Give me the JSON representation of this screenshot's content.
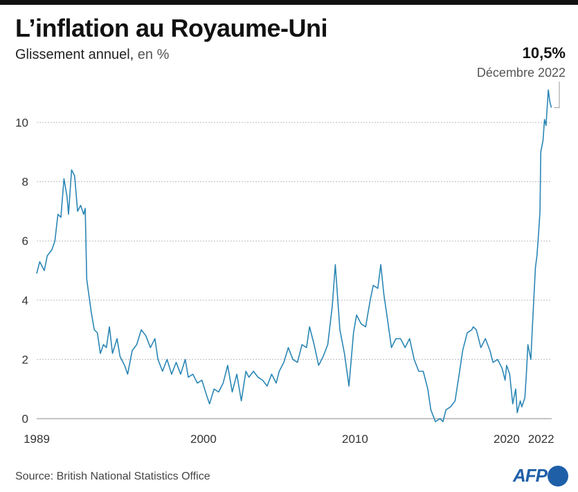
{
  "header": {
    "title": "L’inflation au Royaume-Uni",
    "subtitle": "Glissement annuel,",
    "subtitle_unit": "en %"
  },
  "annotation": {
    "value": "10,5%",
    "date": "Décembre 2022"
  },
  "footer": {
    "source": "Source: British National Statistics Office",
    "logo": "AFP"
  },
  "colors": {
    "line": "#2a86b5",
    "grid": "#bbbbbb",
    "logo": "#1f5fa8"
  },
  "chart_data": {
    "type": "line",
    "title": "L’inflation au Royaume-Uni",
    "ylabel": "Glissement annuel, en %",
    "ylim": [
      -0.2,
      11.2
    ],
    "xlim": [
      1989,
      2022.95
    ],
    "yticks": [
      0,
      2,
      4,
      6,
      8,
      10
    ],
    "xticks": [
      {
        "value": 1989,
        "label": "1989"
      },
      {
        "value": 2000,
        "label": "2000"
      },
      {
        "value": 2010,
        "label": "2010"
      },
      {
        "value": 2020,
        "label": "2020"
      },
      {
        "value": 2022,
        "label": "2022"
      }
    ],
    "grid": true,
    "series": [
      {
        "name": "Inflation",
        "points": [
          [
            1989.0,
            4.9
          ],
          [
            1989.2,
            5.3
          ],
          [
            1989.5,
            5.0
          ],
          [
            1989.7,
            5.5
          ],
          [
            1990.0,
            5.7
          ],
          [
            1990.2,
            6.0
          ],
          [
            1990.4,
            6.9
          ],
          [
            1990.6,
            6.8
          ],
          [
            1990.8,
            8.1
          ],
          [
            1991.0,
            7.5
          ],
          [
            1991.1,
            6.9
          ],
          [
            1991.3,
            8.4
          ],
          [
            1991.5,
            8.2
          ],
          [
            1991.7,
            7.0
          ],
          [
            1991.9,
            7.2
          ],
          [
            1992.1,
            6.9
          ],
          [
            1992.2,
            7.1
          ],
          [
            1992.3,
            4.7
          ],
          [
            1992.6,
            3.6
          ],
          [
            1992.8,
            3.0
          ],
          [
            1993.0,
            2.9
          ],
          [
            1993.2,
            2.2
          ],
          [
            1993.4,
            2.5
          ],
          [
            1993.6,
            2.4
          ],
          [
            1993.8,
            3.1
          ],
          [
            1994.0,
            2.2
          ],
          [
            1994.3,
            2.7
          ],
          [
            1994.5,
            2.1
          ],
          [
            1994.8,
            1.8
          ],
          [
            1995.0,
            1.5
          ],
          [
            1995.3,
            2.3
          ],
          [
            1995.6,
            2.5
          ],
          [
            1995.9,
            3.0
          ],
          [
            1996.2,
            2.8
          ],
          [
            1996.5,
            2.4
          ],
          [
            1996.8,
            2.7
          ],
          [
            1997.0,
            2.0
          ],
          [
            1997.3,
            1.6
          ],
          [
            1997.6,
            2.0
          ],
          [
            1997.9,
            1.5
          ],
          [
            1998.2,
            1.9
          ],
          [
            1998.5,
            1.5
          ],
          [
            1998.8,
            2.0
          ],
          [
            1999.0,
            1.4
          ],
          [
            1999.3,
            1.5
          ],
          [
            1999.6,
            1.2
          ],
          [
            1999.9,
            1.3
          ],
          [
            2000.2,
            0.8
          ],
          [
            2000.4,
            0.5
          ],
          [
            2000.7,
            1.0
          ],
          [
            2001.0,
            0.9
          ],
          [
            2001.3,
            1.2
          ],
          [
            2001.6,
            1.8
          ],
          [
            2001.9,
            0.9
          ],
          [
            2002.2,
            1.5
          ],
          [
            2002.5,
            0.6
          ],
          [
            2002.8,
            1.6
          ],
          [
            2003.0,
            1.4
          ],
          [
            2003.3,
            1.6
          ],
          [
            2003.6,
            1.4
          ],
          [
            2003.9,
            1.3
          ],
          [
            2004.2,
            1.1
          ],
          [
            2004.5,
            1.5
          ],
          [
            2004.8,
            1.2
          ],
          [
            2005.0,
            1.6
          ],
          [
            2005.3,
            1.9
          ],
          [
            2005.6,
            2.4
          ],
          [
            2005.9,
            2.0
          ],
          [
            2006.2,
            1.9
          ],
          [
            2006.5,
            2.5
          ],
          [
            2006.8,
            2.4
          ],
          [
            2007.0,
            3.1
          ],
          [
            2007.3,
            2.5
          ],
          [
            2007.6,
            1.8
          ],
          [
            2007.9,
            2.1
          ],
          [
            2008.2,
            2.5
          ],
          [
            2008.5,
            3.8
          ],
          [
            2008.7,
            5.2
          ],
          [
            2009.0,
            3.0
          ],
          [
            2009.3,
            2.2
          ],
          [
            2009.6,
            1.1
          ],
          [
            2009.9,
            2.9
          ],
          [
            2010.1,
            3.5
          ],
          [
            2010.4,
            3.2
          ],
          [
            2010.7,
            3.1
          ],
          [
            2011.0,
            4.0
          ],
          [
            2011.2,
            4.5
          ],
          [
            2011.5,
            4.4
          ],
          [
            2011.7,
            5.2
          ],
          [
            2011.9,
            4.2
          ],
          [
            2012.1,
            3.5
          ],
          [
            2012.4,
            2.4
          ],
          [
            2012.7,
            2.7
          ],
          [
            2013.0,
            2.7
          ],
          [
            2013.3,
            2.4
          ],
          [
            2013.6,
            2.7
          ],
          [
            2013.9,
            2.0
          ],
          [
            2014.2,
            1.6
          ],
          [
            2014.5,
            1.6
          ],
          [
            2014.8,
            1.0
          ],
          [
            2015.0,
            0.3
          ],
          [
            2015.3,
            -0.1
          ],
          [
            2015.6,
            0.0
          ],
          [
            2015.8,
            -0.1
          ],
          [
            2016.0,
            0.3
          ],
          [
            2016.3,
            0.4
          ],
          [
            2016.6,
            0.6
          ],
          [
            2016.9,
            1.6
          ],
          [
            2017.1,
            2.3
          ],
          [
            2017.4,
            2.9
          ],
          [
            2017.7,
            3.0
          ],
          [
            2017.8,
            3.1
          ],
          [
            2018.0,
            3.0
          ],
          [
            2018.3,
            2.4
          ],
          [
            2018.6,
            2.7
          ],
          [
            2018.9,
            2.3
          ],
          [
            2019.1,
            1.9
          ],
          [
            2019.4,
            2.0
          ],
          [
            2019.7,
            1.7
          ],
          [
            2019.9,
            1.3
          ],
          [
            2020.0,
            1.8
          ],
          [
            2020.2,
            1.5
          ],
          [
            2020.4,
            0.5
          ],
          [
            2020.6,
            1.0
          ],
          [
            2020.7,
            0.2
          ],
          [
            2020.9,
            0.6
          ],
          [
            2021.0,
            0.4
          ],
          [
            2021.2,
            0.7
          ],
          [
            2021.3,
            1.5
          ],
          [
            2021.4,
            2.5
          ],
          [
            2021.6,
            2.0
          ],
          [
            2021.7,
            3.1
          ],
          [
            2021.9,
            5.1
          ],
          [
            2022.0,
            5.5
          ],
          [
            2022.1,
            6.2
          ],
          [
            2022.2,
            7.0
          ],
          [
            2022.25,
            9.0
          ],
          [
            2022.4,
            9.4
          ],
          [
            2022.5,
            10.1
          ],
          [
            2022.6,
            9.9
          ],
          [
            2022.75,
            11.1
          ],
          [
            2022.85,
            10.7
          ],
          [
            2022.95,
            10.5
          ]
        ]
      }
    ]
  }
}
